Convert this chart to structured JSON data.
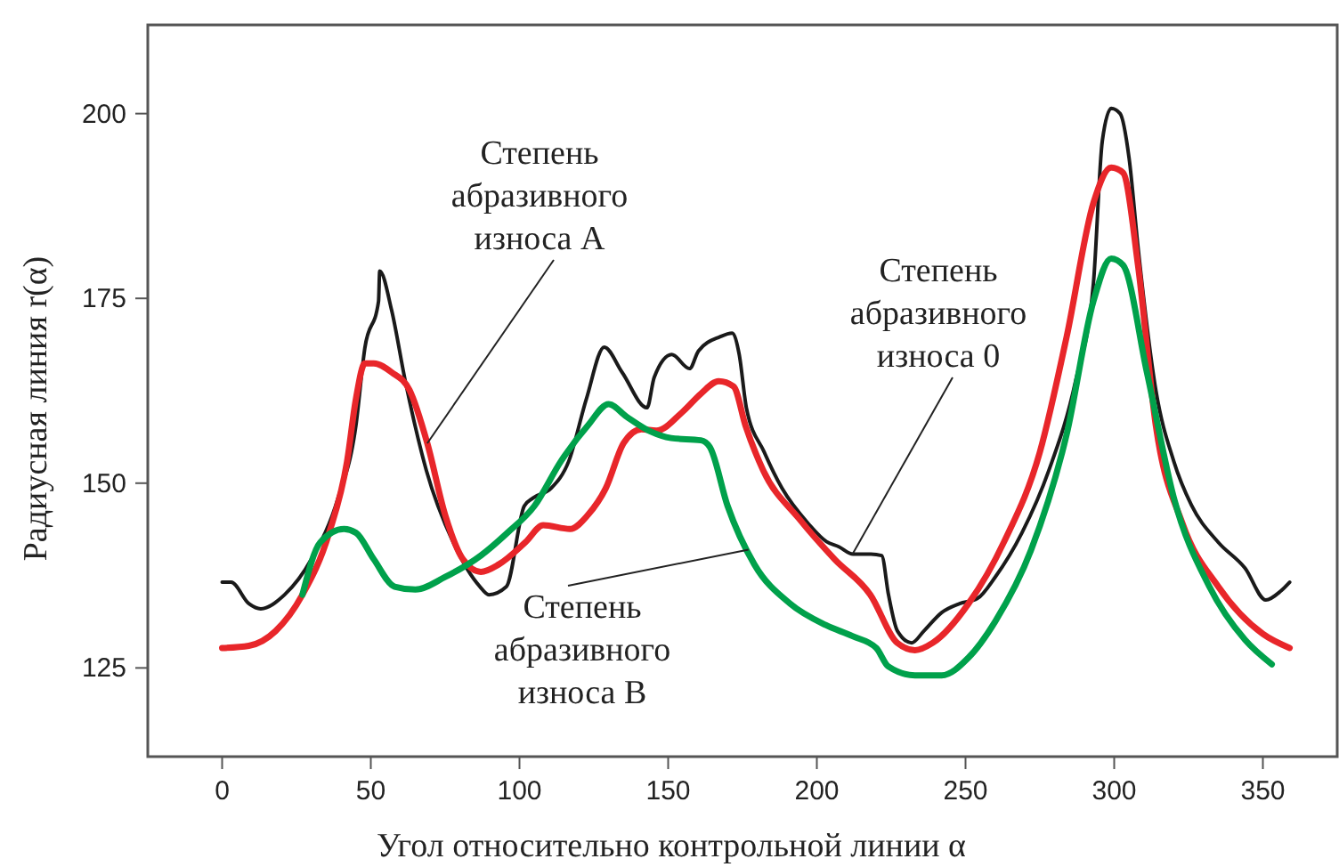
{
  "chart_data": {
    "type": "line",
    "xlabel": "Угол относительно контрольной линии α",
    "ylabel": "Радиусная линия r(α)",
    "xlim": [
      -25,
      375
    ],
    "ylim": [
      113,
      212
    ],
    "xticks": [
      0,
      50,
      100,
      150,
      200,
      250,
      300,
      350
    ],
    "yticks": [
      125,
      150,
      175,
      200
    ],
    "grid": false,
    "marker": "none",
    "line_style": "solid",
    "series": [
      {
        "color": "#1a1a1a",
        "x": [
          0,
          3,
          9,
          13,
          21,
          30,
          39,
          45,
          48,
          52.6,
          53,
          57,
          61.6,
          68.7,
          77.7,
          86.7,
          89.7,
          95.6,
          101.6,
          104.6,
          110.6,
          116.6,
          122.5,
          128.5,
          134.5,
          142.9,
          145.3,
          151.2,
          157.2,
          160.2,
          167.4,
          171.5,
          173.9,
          176.3,
          182.3,
          188.3,
          197.2,
          203.2,
          207.4,
          212.2,
          218.2,
          221.8,
          224.1,
          227.1,
          231.9,
          236,
          242,
          248,
          254,
          260,
          269,
          278,
          287,
          293,
          296,
          299,
          302,
          305,
          308,
          314,
          320,
          326,
          335,
          344,
          351,
          356,
          359
        ],
        "values": [
          136.6,
          136.6,
          133.7,
          133,
          134.9,
          139.7,
          148,
          157.8,
          168.3,
          174.6,
          178.7,
          173.4,
          163.8,
          151.7,
          142,
          136,
          134.9,
          136,
          146.9,
          148,
          149.3,
          153,
          161.4,
          168.4,
          165,
          160.2,
          164.3,
          167.4,
          165.5,
          167.9,
          169.8,
          170.3,
          167.4,
          160.2,
          154.2,
          149.3,
          144.5,
          142.1,
          141.4,
          140.4,
          140.4,
          140.2,
          134.9,
          130,
          128.4,
          130,
          132.5,
          133.7,
          134.4,
          137.3,
          143.3,
          151.7,
          163.8,
          177,
          196.3,
          200.7,
          200,
          194,
          182,
          162.6,
          153,
          147,
          142,
          138.5,
          134.2,
          135.4,
          136.6
        ]
      },
      {
        "color": "#e8262a",
        "x": [
          0,
          9,
          18,
          27,
          36,
          42,
          45,
          48,
          51,
          57,
          63,
          69,
          75,
          81,
          87,
          93,
          102,
          108,
          117,
          123,
          129,
          135,
          141,
          146,
          155,
          161,
          167,
          172,
          176,
          182,
          194,
          206,
          218,
          227,
          233,
          239,
          251,
          263,
          275,
          284,
          293,
          299,
          303,
          308,
          314,
          323,
          335,
          350,
          359
        ],
        "values": [
          127.7,
          128,
          130,
          134.9,
          143.3,
          152.9,
          161.4,
          166.2,
          166.2,
          165,
          162.6,
          155.4,
          145.7,
          139.7,
          138,
          139,
          142,
          144.3,
          143.8,
          145.7,
          149.3,
          155.4,
          157.3,
          157.1,
          159.7,
          162.1,
          163.8,
          163.1,
          157.8,
          151.7,
          145.2,
          139.7,
          134.9,
          128.4,
          127.4,
          128.4,
          133.7,
          142.1,
          154.2,
          169.8,
          187.9,
          192.7,
          192,
          179.5,
          157.8,
          144.5,
          136,
          129.6,
          127.7
        ]
      },
      {
        "color": "#00a14b",
        "x": [
          27,
          33,
          41,
          45,
          51,
          58,
          65,
          75,
          87,
          96,
          105,
          114,
          123,
          130,
          136,
          144,
          151,
          161,
          164,
          170,
          179,
          191,
          203,
          212,
          220,
          224,
          233,
          242,
          251,
          260,
          272,
          284,
          293,
          299,
          303,
          311,
          320,
          332,
          344,
          353
        ],
        "values": [
          134.9,
          142,
          143.8,
          143.3,
          139.7,
          136,
          135.6,
          137.3,
          140.2,
          143.3,
          146.9,
          153,
          157.8,
          160.7,
          159,
          157,
          156.1,
          155.8,
          154.9,
          146.9,
          139,
          133.7,
          130.8,
          129.3,
          127.7,
          125.2,
          124,
          124,
          126.4,
          131.3,
          140.9,
          156.6,
          174.6,
          180.4,
          179.5,
          165,
          148.1,
          136,
          128.8,
          125.5
        ]
      }
    ],
    "annotations": [
      {
        "text": "Степень\nабразивного\nизноса А",
        "x": 69,
        "y": 155.4
      },
      {
        "text": "Степень\nабразивного\nизноса 0",
        "x": 212,
        "y": 140.4
      },
      {
        "text": "Степень\nабразивного\nизноса В",
        "x": 177,
        "y": 141
      }
    ]
  }
}
